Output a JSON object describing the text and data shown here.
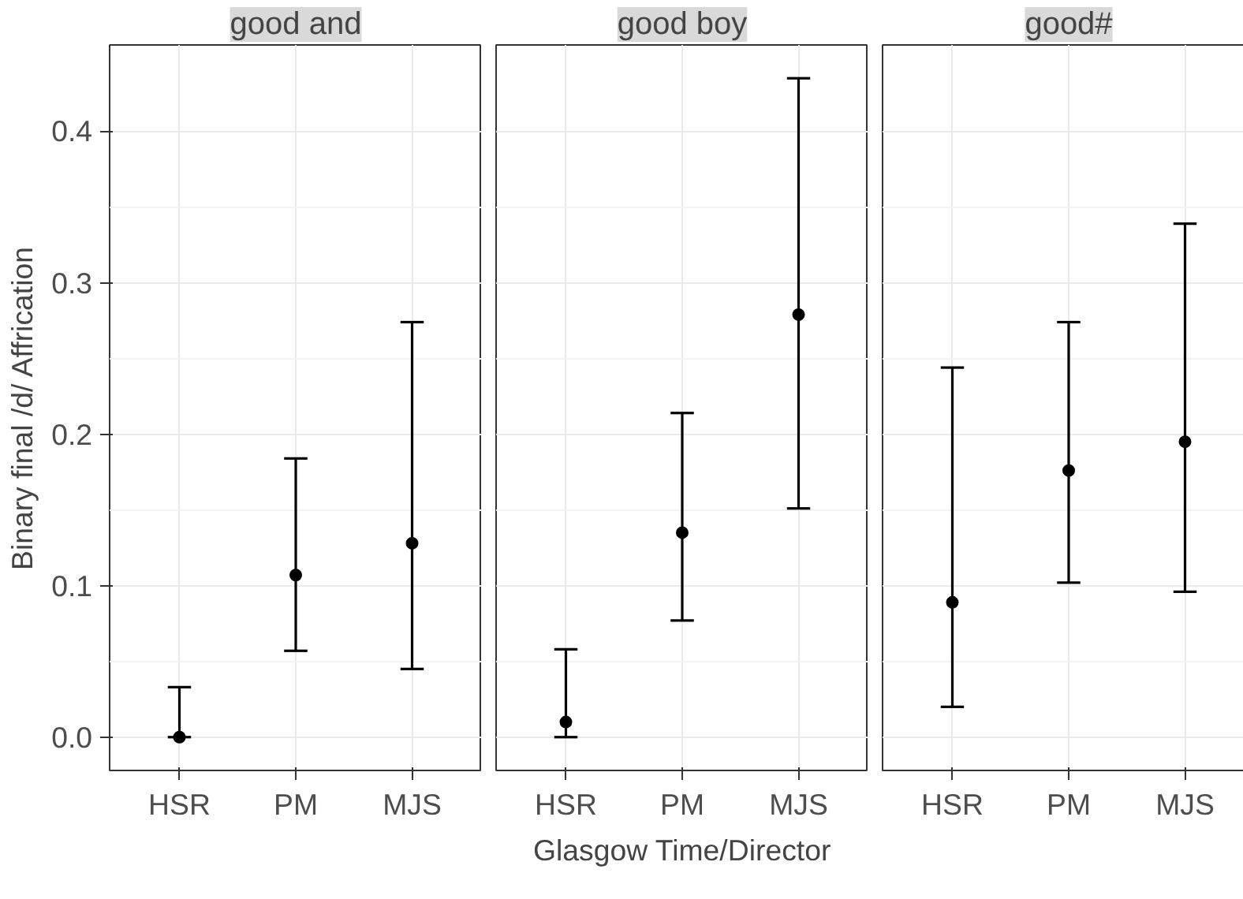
{
  "chart_data": [
    {
      "type": "scatter",
      "title": "good and",
      "ylabel": "Binary final /d/ Affrication",
      "categories": [
        "HSR",
        "PM",
        "MJS"
      ],
      "values": [
        0.0,
        0.107,
        0.128
      ],
      "errors": [
        [
          0.0,
          0.033
        ],
        [
          0.057,
          0.184
        ],
        [
          0.045,
          0.274
        ]
      ],
      "color": "#000000",
      "marker": "circle",
      "ylim": [
        -0.022,
        0.457
      ],
      "yticks": [
        {
          "value": 0.0,
          "label": "0.0"
        },
        0.1,
        0.2,
        0.3,
        0.4
      ],
      "grid": true
    },
    {
      "type": "scatter",
      "title": "good boy",
      "xlabel": "Glasgow Time/Director",
      "categories": [
        "HSR",
        "PM",
        "MJS"
      ],
      "values": [
        0.01,
        0.135,
        0.279
      ],
      "errors": [
        [
          0.0,
          0.058
        ],
        [
          0.077,
          0.214
        ],
        [
          0.151,
          0.435
        ]
      ],
      "color": "#000000",
      "marker": "circle",
      "ylim": [
        -0.022,
        0.457
      ],
      "yticks": [
        0,
        0.1,
        0.2,
        0.3,
        0.4
      ],
      "tick_labels": "x",
      "grid": true
    },
    {
      "type": "scatter",
      "title": "good#",
      "categories": [
        "HSR",
        "PM",
        "MJS"
      ],
      "values": [
        0.089,
        0.176,
        0.195
      ],
      "errors": [
        [
          0.02,
          0.244
        ],
        [
          0.102,
          0.274
        ],
        [
          0.096,
          0.339
        ]
      ],
      "color": "#000000",
      "marker": "circle",
      "ylim": [
        -0.022,
        0.457
      ],
      "yticks": [
        0,
        0.1,
        0.2,
        0.3,
        0.4
      ],
      "tick_labels": "x",
      "grid": true
    }
  ]
}
